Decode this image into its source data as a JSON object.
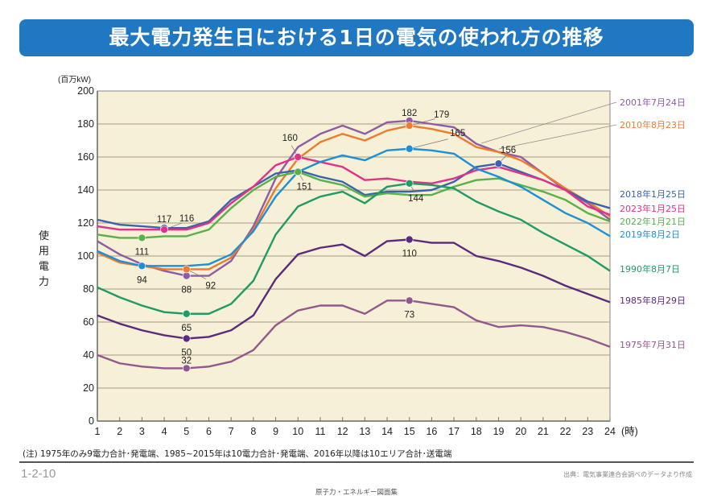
{
  "page": {
    "title": "最大電力発生日における1日の電気の使われ方の推移",
    "note": "(注) 1975年のみ9電力合計･発電端、1985~2015年は10電力合計･発電端、2016年以降は10エリア合計･送電端",
    "page_number": "1-2-10",
    "source": "出典：電気事業連合会調べのデータより作成",
    "book_title": "原子力・エネルギー図面集"
  },
  "chart_data": {
    "type": "line",
    "title": "最大電力発生日における1日の電気の使われ方の推移",
    "xlabel": "(時)",
    "ylabel": "使用電力",
    "yunit": "(百万kW)",
    "x": [
      1,
      2,
      3,
      4,
      5,
      6,
      7,
      8,
      9,
      10,
      11,
      12,
      13,
      14,
      15,
      16,
      17,
      18,
      19,
      20,
      21,
      22,
      23,
      24
    ],
    "xlim": [
      1,
      24
    ],
    "ylim": [
      0,
      200
    ],
    "yticks": [
      0,
      20,
      40,
      60,
      80,
      100,
      120,
      140,
      160,
      180,
      200
    ],
    "grid": true,
    "legend_placement": "right",
    "series": [
      {
        "name": "2001年7月24日",
        "color": "#8e5ba6",
        "values": [
          109,
          101,
          95,
          91,
          88,
          88,
          97,
          118,
          147,
          166,
          174,
          179,
          174,
          181,
          182,
          180,
          178,
          168,
          163,
          160,
          150,
          140,
          132,
          122
        ],
        "annotation": {
          "x": 15,
          "label": "182"
        },
        "extra_marker": {
          "x": 5,
          "label": "88"
        }
      },
      {
        "name": "2010年8月23日",
        "color": "#ee7a2e",
        "values": [
          102,
          96,
          94,
          92,
          92,
          92,
          99,
          116,
          141,
          159,
          169,
          174,
          170,
          176,
          179,
          177,
          174,
          166,
          163,
          158,
          150,
          141,
          133,
          124
        ],
        "annotation": {
          "x": 15,
          "label": "179"
        },
        "extra_marker": {
          "x": 5,
          "label": "92"
        }
      },
      {
        "name": "2018年1月25日",
        "color": "#3a63ad",
        "values": [
          122,
          119,
          118,
          117,
          117,
          121,
          134,
          142,
          150,
          152,
          148,
          145,
          137,
          139,
          139,
          140,
          145,
          154,
          156,
          151,
          146,
          140,
          133,
          129
        ],
        "annotation": {
          "x": 19,
          "label": "156"
        },
        "extra_marker": {
          "x": 4,
          "label": "117"
        }
      },
      {
        "name": "2023年1月25日",
        "color": "#e2318a",
        "values": [
          118,
          116,
          116,
          116,
          116,
          120,
          132,
          142,
          155,
          160,
          157,
          154,
          146,
          147,
          145,
          144,
          147,
          152,
          154,
          150,
          146,
          140,
          130,
          125
        ],
        "annotation": {
          "x": 10,
          "label": "160"
        },
        "extra_marker": {
          "x": 4,
          "label": "116"
        }
      },
      {
        "name": "2022年1月21日",
        "color": "#5ab04a",
        "values": [
          113,
          111,
          111,
          112,
          112,
          116,
          129,
          140,
          148,
          151,
          146,
          143,
          136,
          138,
          137,
          137,
          142,
          146,
          147,
          143,
          139,
          134,
          126,
          121
        ],
        "annotation": {
          "x": 10,
          "label": "151"
        },
        "extra_marker": {
          "x": 3,
          "label": "111"
        }
      },
      {
        "name": "2019年8月2日",
        "color": "#1e8fd6",
        "values": [
          103,
          97,
          94,
          94,
          94,
          95,
          101,
          115,
          136,
          151,
          157,
          161,
          158,
          164,
          165,
          164,
          162,
          153,
          148,
          142,
          134,
          126,
          120,
          112
        ],
        "annotation": {
          "x": 15,
          "label": "165"
        },
        "extra_marker": {
          "x": 3,
          "label": "94"
        }
      },
      {
        "name": "1990年8月7日",
        "color": "#1f9b66",
        "values": [
          81,
          75,
          70,
          66,
          65,
          65,
          71,
          85,
          113,
          130,
          136,
          139,
          132,
          142,
          144,
          143,
          141,
          133,
          127,
          122,
          114,
          107,
          100,
          91
        ],
        "annotation": {
          "x": 15,
          "label": "144"
        },
        "extra_marker": {
          "x": 5,
          "label": "65"
        }
      },
      {
        "name": "1985年8月29日",
        "color": "#5a2a7e",
        "values": [
          64,
          59,
          55,
          52,
          50,
          51,
          55,
          64,
          86,
          101,
          105,
          107,
          100,
          109,
          110,
          108,
          108,
          100,
          97,
          93,
          88,
          82,
          77,
          72
        ],
        "annotation": {
          "x": 15,
          "label": "110"
        },
        "extra_marker": {
          "x": 5,
          "label": "50"
        }
      },
      {
        "name": "1975年7月31日",
        "color": "#93578f",
        "values": [
          40,
          35,
          33,
          32,
          32,
          33,
          36,
          43,
          58,
          67,
          70,
          70,
          65,
          73,
          73,
          71,
          69,
          61,
          57,
          58,
          57,
          54,
          50,
          45
        ],
        "annotation": {
          "x": 15,
          "label": "73"
        },
        "extra_marker": {
          "x": 5,
          "label": "32"
        }
      }
    ]
  }
}
